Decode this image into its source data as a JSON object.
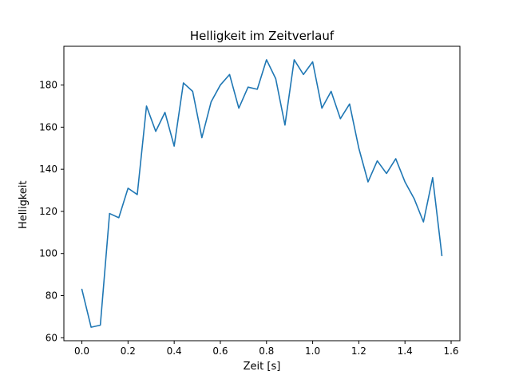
{
  "chart_data": {
    "type": "line",
    "title": "Helligkeit im Zeitverlauf",
    "xlabel": "Zeit [s]",
    "ylabel": "Helligkeit",
    "legend": null,
    "grid": false,
    "line_color": "#1f77b4",
    "axis_color": "#000000",
    "background_color": "#ffffff",
    "xlim": [
      -0.078,
      1.638
    ],
    "ylim": [
      58.6,
      198.4
    ],
    "xticks": [
      0.0,
      0.2,
      0.4,
      0.6,
      0.8,
      1.0,
      1.2,
      1.4,
      1.6
    ],
    "xtick_labels": [
      "0.0",
      "0.2",
      "0.4",
      "0.6",
      "0.8",
      "1.0",
      "1.2",
      "1.4",
      "1.6"
    ],
    "yticks": [
      60,
      80,
      100,
      120,
      140,
      160,
      180
    ],
    "ytick_labels": [
      "60",
      "80",
      "100",
      "120",
      "140",
      "160",
      "180"
    ],
    "x": [
      0.0,
      0.04,
      0.08,
      0.12,
      0.16,
      0.2,
      0.24,
      0.28,
      0.32,
      0.36,
      0.4,
      0.44,
      0.48,
      0.52,
      0.56,
      0.6,
      0.64,
      0.68,
      0.72,
      0.76,
      0.8,
      0.84,
      0.88,
      0.92,
      0.96,
      1.0,
      1.04,
      1.08,
      1.12,
      1.16,
      1.2,
      1.24,
      1.28,
      1.32,
      1.36,
      1.4,
      1.44,
      1.48,
      1.52,
      1.56
    ],
    "y": [
      83,
      65,
      66,
      119,
      117,
      131,
      128,
      170,
      158,
      167,
      151,
      181,
      177,
      155,
      172,
      180,
      185,
      169,
      179,
      178,
      192,
      183,
      161,
      192,
      185,
      191,
      169,
      177,
      164,
      171,
      150,
      134,
      144,
      138,
      145,
      134,
      126,
      115,
      136,
      99
    ]
  }
}
